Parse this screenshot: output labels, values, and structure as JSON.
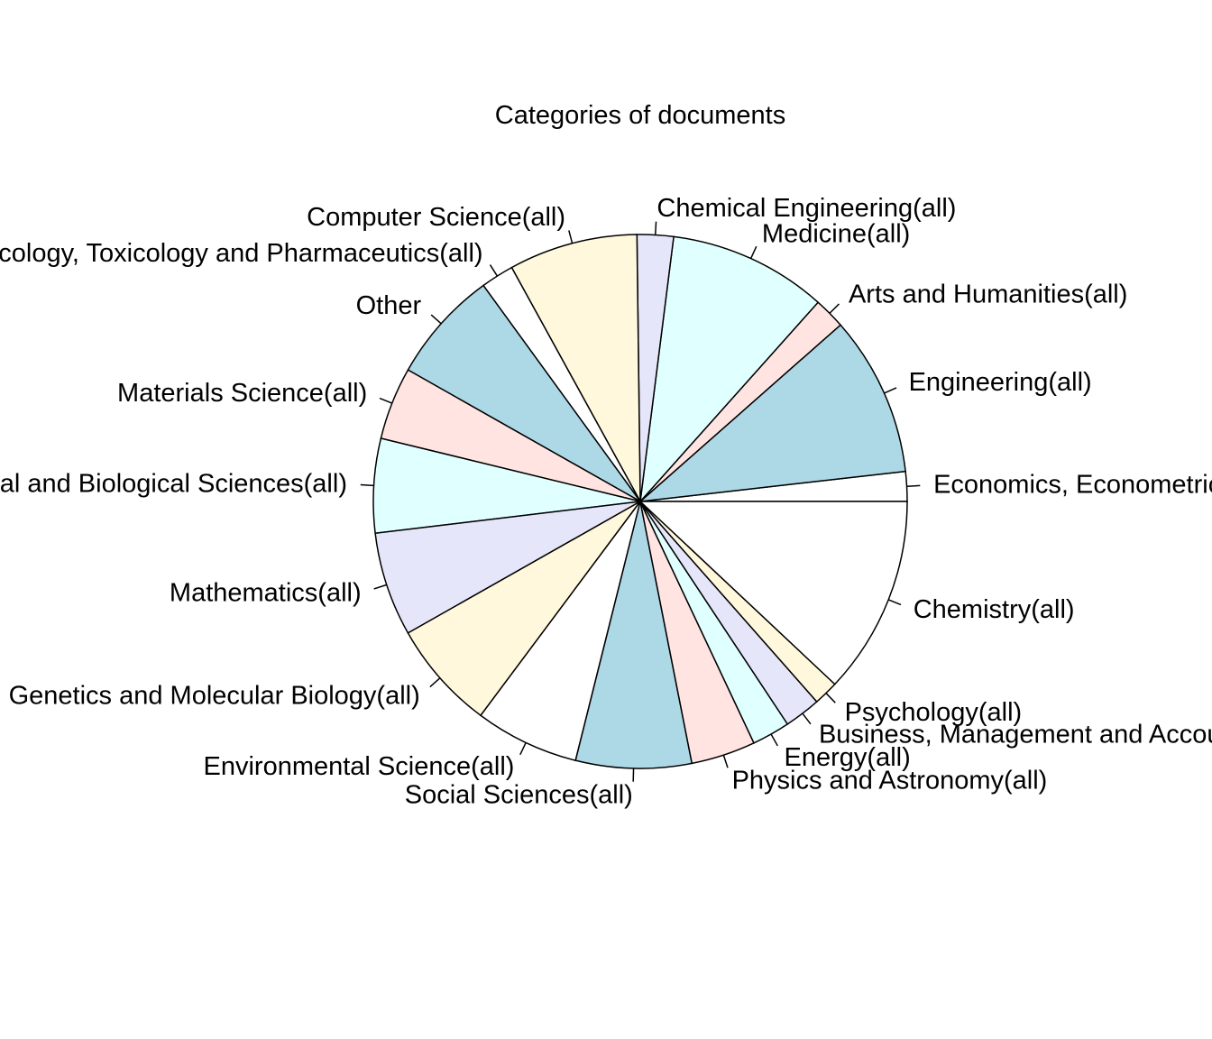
{
  "chart_data": {
    "type": "pie",
    "title": "Categories of documents",
    "direction": "counterclockwise",
    "start": "3 o'clock",
    "slices": [
      {
        "label": "Economics, Econometrics and Finance(all)",
        "value": 1.8,
        "color": "#ffffff"
      },
      {
        "label": "Engineering(all)",
        "value": 9.7,
        "color": "#add8e6"
      },
      {
        "label": "Arts and Humanities(all)",
        "value": 1.9,
        "color": "#ffe4e1"
      },
      {
        "label": "Medicine(all)",
        "value": 9.6,
        "color": "#e0ffff"
      },
      {
        "label": "Chemical Engineering(all)",
        "value": 2.2,
        "color": "#e6e6fa"
      },
      {
        "label": "Computer Science(all)",
        "value": 7.8,
        "color": "#fff8dc"
      },
      {
        "label": "Pharmacology, Toxicology and Pharmaceutics(all)",
        "value": 2.0,
        "color": "#ffffff"
      },
      {
        "label": "Other",
        "value": 6.8,
        "color": "#add8e6"
      },
      {
        "label": "Materials Science(all)",
        "value": 4.4,
        "color": "#ffe4e1"
      },
      {
        "label": "Agricultural and Biological Sciences(all)",
        "value": 5.7,
        "color": "#e0ffff"
      },
      {
        "label": "Mathematics(all)",
        "value": 6.3,
        "color": "#e6e6fa"
      },
      {
        "label": "Biochemistry, Genetics and Molecular Biology(all)",
        "value": 6.6,
        "color": "#fff8dc"
      },
      {
        "label": "Environmental Science(all)",
        "value": 6.3,
        "color": "#ffffff"
      },
      {
        "label": "Social Sciences(all)",
        "value": 7.0,
        "color": "#add8e6"
      },
      {
        "label": "Physics and Astronomy(all)",
        "value": 3.9,
        "color": "#ffe4e1"
      },
      {
        "label": "Energy(all)",
        "value": 2.3,
        "color": "#e0ffff"
      },
      {
        "label": "Business, Management and Accounting(all)",
        "value": 2.2,
        "color": "#e6e6fa"
      },
      {
        "label": "Psychology(all)",
        "value": 1.5,
        "color": "#fff8dc"
      },
      {
        "label": "Chemistry(all)",
        "value": 12.0,
        "color": "#ffffff"
      }
    ]
  }
}
